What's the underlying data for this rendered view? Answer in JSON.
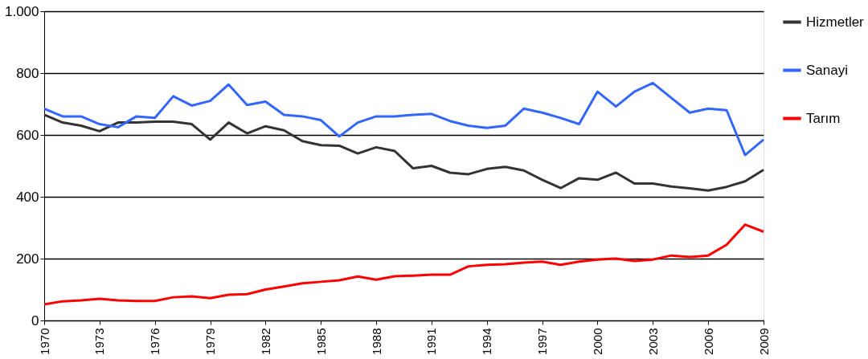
{
  "chart_data": {
    "type": "line",
    "x": [
      1970,
      1971,
      1972,
      1973,
      1974,
      1975,
      1976,
      1977,
      1978,
      1979,
      1980,
      1981,
      1982,
      1983,
      1984,
      1985,
      1986,
      1987,
      1988,
      1989,
      1990,
      1991,
      1992,
      1993,
      1994,
      1995,
      1996,
      1997,
      1998,
      1999,
      2000,
      2001,
      2002,
      2003,
      2004,
      2005,
      2006,
      2007,
      2008,
      2009
    ],
    "series": [
      {
        "name": "Hizmetler",
        "color": "#333333",
        "values": [
          665,
          640,
          630,
          612,
          640,
          640,
          643,
          643,
          635,
          585,
          640,
          605,
          628,
          615,
          580,
          567,
          565,
          540,
          560,
          548,
          492,
          500,
          478,
          473,
          490,
          497,
          485,
          455,
          428,
          460,
          455,
          478,
          443,
          443,
          433,
          427,
          420,
          432,
          450,
          487
        ]
      },
      {
        "name": "Sanayi",
        "color": "#3366ff",
        "values": [
          685,
          660,
          660,
          635,
          625,
          660,
          655,
          725,
          695,
          710,
          763,
          697,
          708,
          665,
          660,
          648,
          595,
          640,
          660,
          660,
          665,
          668,
          645,
          630,
          623,
          630,
          685,
          672,
          655,
          635,
          740,
          692,
          740,
          768,
          720,
          672,
          685,
          680,
          535,
          585
        ]
      },
      {
        "name": "Tarım",
        "color": "#ff0000",
        "values": [
          52,
          62,
          65,
          70,
          65,
          63,
          63,
          75,
          78,
          72,
          83,
          85,
          100,
          110,
          120,
          125,
          130,
          142,
          132,
          143,
          145,
          148,
          148,
          175,
          180,
          182,
          187,
          190,
          180,
          190,
          197,
          200,
          192,
          197,
          210,
          205,
          210,
          245,
          310,
          287
        ]
      }
    ],
    "xlim": [
      1970,
      2009
    ],
    "xticks": [
      1970,
      1973,
      1976,
      1979,
      1982,
      1985,
      1988,
      1991,
      1994,
      1997,
      2000,
      2003,
      2006,
      2009
    ],
    "ylim": [
      0,
      1000
    ],
    "yticks": [
      0,
      200,
      400,
      600,
      800,
      {
        "value": 1000,
        "label": "1.000"
      }
    ],
    "grid": "y",
    "legend": "right",
    "marker": "none",
    "line_style": "solid"
  }
}
